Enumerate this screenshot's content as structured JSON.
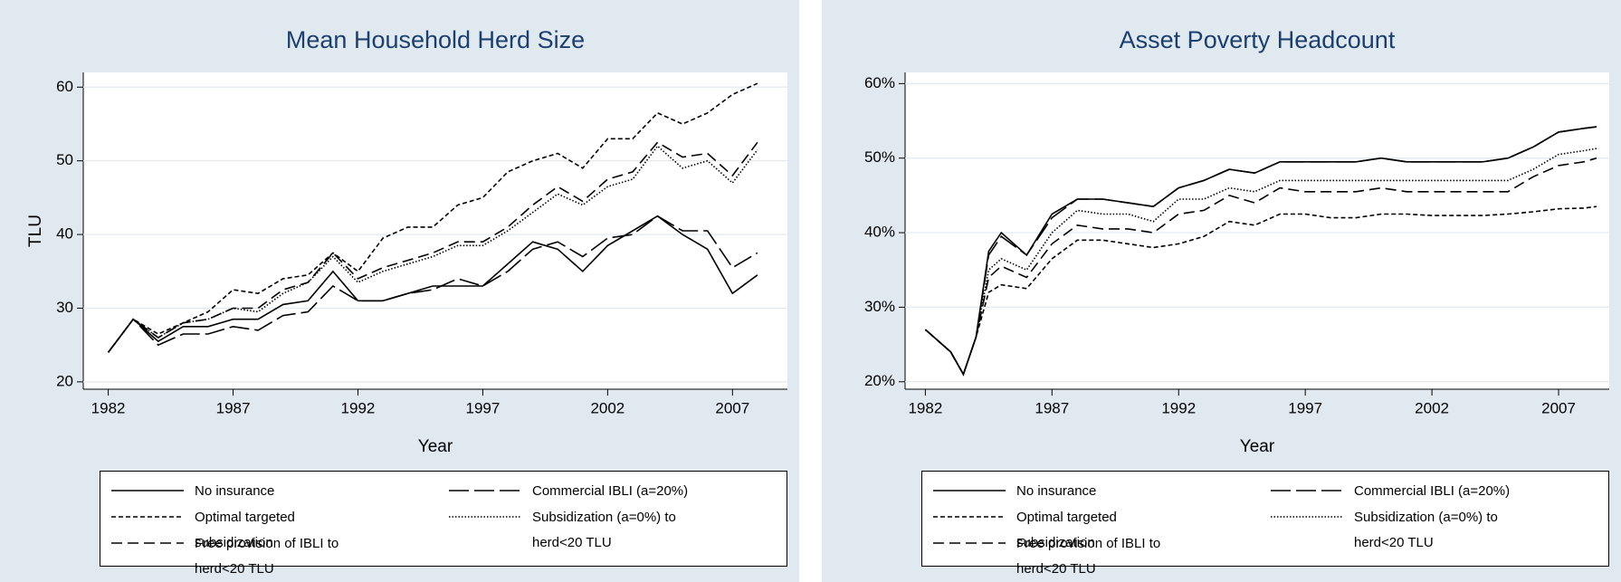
{
  "chart_data": [
    {
      "type": "line",
      "title": "Mean Household Herd Size",
      "x_label": "Year",
      "y_label": "TLU",
      "x": [
        1982,
        1983,
        1984,
        1985,
        1986,
        1987,
        1988,
        1989,
        1990,
        1991,
        1992,
        1993,
        1994,
        1995,
        1996,
        1997,
        1998,
        1999,
        2000,
        2001,
        2002,
        2003,
        2004,
        2005,
        2006,
        2007,
        2008
      ],
      "xlim": [
        1981,
        2009.2
      ],
      "xticks": [
        1982,
        1987,
        1992,
        1997,
        2002,
        2007
      ],
      "ylim": [
        19,
        62
      ],
      "yticks": [
        20,
        30,
        40,
        50,
        60
      ],
      "grid": true,
      "series": [
        {
          "name": "No insurance",
          "color": "#000000",
          "style": "solid",
          "values": [
            24,
            28.5,
            25.5,
            27.5,
            27.5,
            28.5,
            28.5,
            30.5,
            31,
            35,
            31,
            31,
            32,
            33,
            33,
            33,
            36,
            39,
            38,
            35,
            38.5,
            40.5,
            42.5,
            40,
            38,
            32,
            34.5
          ]
        },
        {
          "name": "Commercial IBLI (a=20%)",
          "color": "#000000",
          "style": "long-dash",
          "values": [
            24,
            28.5,
            25,
            26.5,
            26.5,
            27.5,
            27,
            29,
            29.5,
            33,
            31,
            31,
            32,
            32.5,
            34,
            33,
            35,
            38,
            39,
            37,
            39.5,
            40,
            42.5,
            40.5,
            40.5,
            35.5,
            37.5
          ]
        },
        {
          "name": "Optimal targeted subsidization",
          "color": "#000000",
          "style": "short-dash",
          "values": [
            24,
            28.5,
            26.5,
            28,
            29.5,
            32.5,
            32,
            34,
            34.5,
            37.5,
            35,
            39.5,
            41,
            41,
            44,
            45,
            48.5,
            50,
            51,
            49,
            53,
            53,
            56.5,
            55,
            56.5,
            59,
            60.5
          ]
        },
        {
          "name": "Subsidization (a=0%) to herd<20 TLU",
          "color": "#000000",
          "style": "dotted",
          "values": [
            24,
            28.5,
            26,
            28,
            28.5,
            30,
            29.5,
            32,
            33.5,
            37,
            33.5,
            35,
            36,
            37,
            38.5,
            38.5,
            40.5,
            43,
            45.5,
            44,
            46.5,
            47.5,
            52,
            49,
            50,
            47,
            51.5
          ]
        },
        {
          "name": "Free provision of IBLI to herd<20 TLU",
          "color": "#000000",
          "style": "medium-dash",
          "values": [
            24,
            28.5,
            26,
            28,
            28.5,
            30,
            30,
            32.5,
            33.5,
            37.5,
            34,
            35.5,
            36.5,
            37.5,
            39,
            39,
            41,
            44,
            46.5,
            44.5,
            47.5,
            48.5,
            52.5,
            50.5,
            51,
            48,
            52.5
          ]
        }
      ]
    },
    {
      "type": "line",
      "title": "Asset Poverty Headcount",
      "x_label": "Year",
      "x": [
        1982,
        1983,
        1983.5,
        1984,
        1984.5,
        1985,
        1986,
        1987,
        1988,
        1989,
        1990,
        1991,
        1992,
        1993,
        1994,
        1995,
        1996,
        1997,
        1998,
        1999,
        2000,
        2001,
        2002,
        2003,
        2004,
        2005,
        2006,
        2007,
        2008,
        2008.5
      ],
      "xlim": [
        1981.2,
        2009
      ],
      "xticks": [
        1982,
        1987,
        1992,
        1997,
        2002,
        2007
      ],
      "ylim": [
        19,
        61.5
      ],
      "yticks": [
        {
          "value": 20,
          "label": "20%"
        },
        {
          "value": 30,
          "label": "30%"
        },
        {
          "value": 40,
          "label": "40%"
        },
        {
          "value": 50,
          "label": "50%"
        },
        {
          "value": 60,
          "label": "60%"
        }
      ],
      "grid": true,
      "series": [
        {
          "name": "No insurance",
          "color": "#000000",
          "style": "solid",
          "values": [
            27,
            24,
            21,
            26,
            37.5,
            40,
            37,
            42.5,
            44.5,
            44.5,
            44,
            43.5,
            46,
            47,
            48.5,
            48,
            49.5,
            49.5,
            49.5,
            49.5,
            50,
            49.5,
            49.5,
            49.5,
            49.5,
            50,
            51.5,
            53.5,
            54,
            54.2
          ]
        },
        {
          "name": "Commercial IBLI (a=20%)",
          "color": "#000000",
          "style": "long-dash",
          "values": [
            27,
            24,
            21,
            26,
            37,
            39.5,
            37,
            42,
            44.5,
            44.5,
            44,
            43.5,
            46,
            47,
            48.5,
            48,
            49.5,
            49.5,
            49.5,
            49.5,
            50,
            49.5,
            49.5,
            49.5,
            49.5,
            50,
            51.5,
            53.5,
            54,
            54.2
          ]
        },
        {
          "name": "Optimal targeted subsidization",
          "color": "#000000",
          "style": "short-dash",
          "values": [
            27,
            24,
            21,
            26,
            32,
            33,
            32.5,
            36.5,
            39,
            39,
            38.5,
            38,
            38.5,
            39.5,
            41.5,
            41,
            42.5,
            42.5,
            42,
            42,
            42.5,
            42.5,
            42.3,
            42.3,
            42.3,
            42.5,
            42.8,
            43.2,
            43.3,
            43.5
          ]
        },
        {
          "name": "Subsidization (a=0%) to herd<20 TLU",
          "color": "#000000",
          "style": "dotted",
          "values": [
            27,
            24,
            21,
            26,
            35,
            36.5,
            35,
            40,
            43,
            42.5,
            42.5,
            41.5,
            44.5,
            44.5,
            46,
            45.5,
            47,
            47,
            47,
            47,
            47,
            47,
            47,
            47,
            47,
            47,
            48.5,
            50.5,
            51,
            51.3
          ]
        },
        {
          "name": "Free provision of IBLI to herd<20 TLU",
          "color": "#000000",
          "style": "medium-dash",
          "values": [
            27,
            24,
            21,
            26,
            34,
            35.5,
            34,
            38.5,
            41,
            40.5,
            40.5,
            40,
            42.5,
            43,
            45,
            44,
            46,
            45.5,
            45.5,
            45.5,
            46,
            45.5,
            45.5,
            45.5,
            45.5,
            45.5,
            47.5,
            49,
            49.5,
            50
          ]
        }
      ]
    }
  ]
}
